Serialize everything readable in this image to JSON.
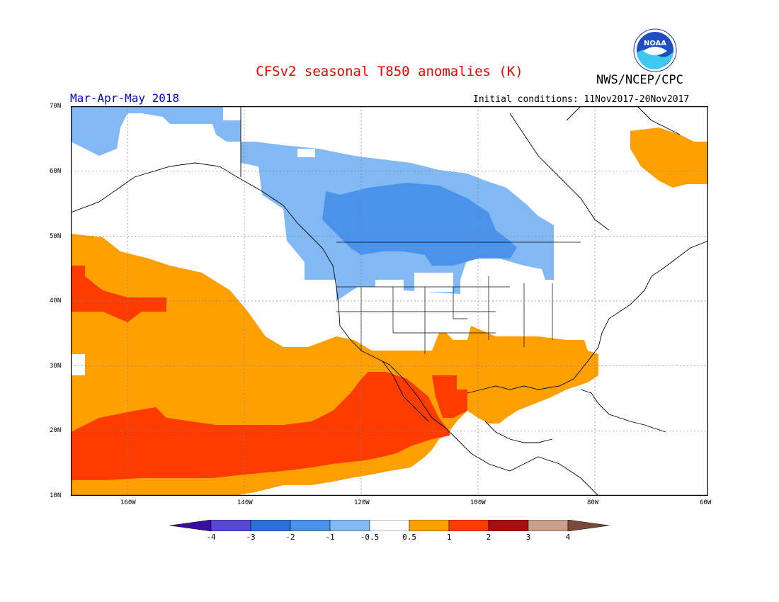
{
  "title": "CFSv2 seasonal T850 anomalies (K)",
  "agency": "NWS/NCEP/CPC",
  "logo_text": "NOAA",
  "period": "Mar-Apr-May 2018",
  "initial_conditions": "Initial conditions: 11Nov2017-20Nov2017",
  "lat_labels": [
    "70N",
    "60N",
    "50N",
    "40N",
    "30N",
    "20N",
    "10N"
  ],
  "lon_labels": [
    "160W",
    "140W",
    "120W",
    "100W",
    "80W",
    "60W"
  ],
  "colorbar": {
    "labels": [
      "-4",
      "-3",
      "-2",
      "-1",
      "-0.5",
      "0.5",
      "1",
      "2",
      "3",
      "4"
    ],
    "colors": [
      "#3a0fa0",
      "#5548d4",
      "#2c6fd8",
      "#4b92ea",
      "#82b9f2",
      "#ffffff",
      "#ffa000",
      "#ff3c00",
      "#a50f0f",
      "#c9a08c",
      "#7a4a3c"
    ]
  },
  "anomaly_colors": {
    "minus_2_to_minus_1": "#4b92ea",
    "minus_1_to_minus_0.5": "#82b9f2",
    "0.5_to_1": "#ffa000",
    "1_to_2": "#ff3c00"
  }
}
